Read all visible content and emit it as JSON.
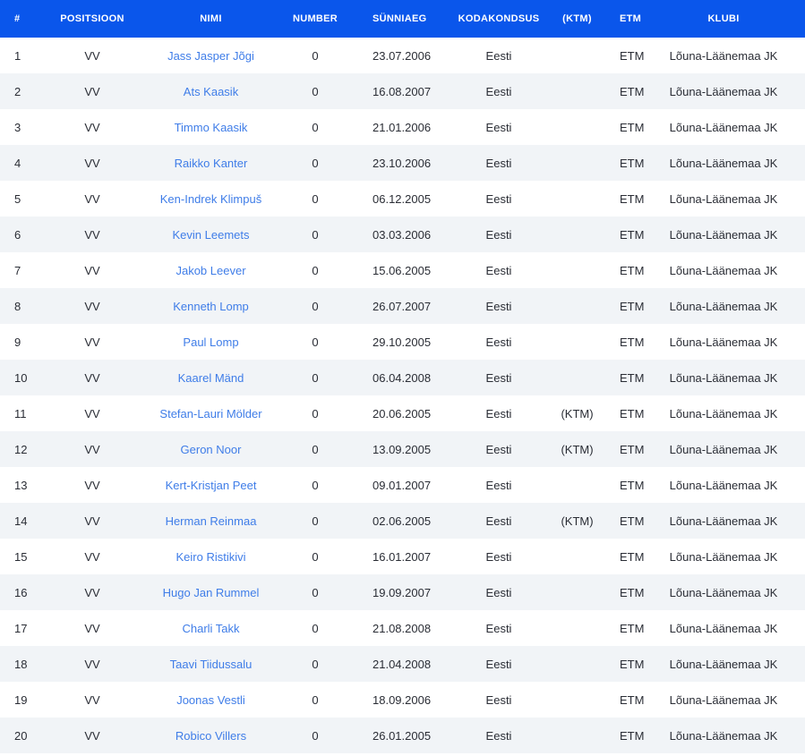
{
  "colors": {
    "header_bg": "#0a56eb",
    "header_text": "#ffffff",
    "row_alt_bg": "#f1f4f7",
    "link": "#3f7de8",
    "text": "#2a2d35"
  },
  "table": {
    "columns": [
      {
        "key": "num",
        "label": "#"
      },
      {
        "key": "positsioon",
        "label": "POSITSIOON"
      },
      {
        "key": "nimi",
        "label": "NIMI"
      },
      {
        "key": "number",
        "label": "NUMBER"
      },
      {
        "key": "sunniaeg",
        "label": "SÜNNIAEG"
      },
      {
        "key": "kodakondsus",
        "label": "KODAKONDSUS"
      },
      {
        "key": "ktm",
        "label": "(KTM)"
      },
      {
        "key": "etm",
        "label": "ETM"
      },
      {
        "key": "klubi",
        "label": "KLUBI"
      }
    ],
    "rows": [
      {
        "num": "1",
        "positsioon": "VV",
        "nimi": "Jass Jasper Jõgi",
        "number": "0",
        "sunniaeg": "23.07.2006",
        "kodakondsus": "Eesti",
        "ktm": "",
        "etm": "ETM",
        "klubi": "Lõuna-Läänemaa JK"
      },
      {
        "num": "2",
        "positsioon": "VV",
        "nimi": "Ats Kaasik",
        "number": "0",
        "sunniaeg": "16.08.2007",
        "kodakondsus": "Eesti",
        "ktm": "",
        "etm": "ETM",
        "klubi": "Lõuna-Läänemaa JK"
      },
      {
        "num": "3",
        "positsioon": "VV",
        "nimi": "Timmo Kaasik",
        "number": "0",
        "sunniaeg": "21.01.2006",
        "kodakondsus": "Eesti",
        "ktm": "",
        "etm": "ETM",
        "klubi": "Lõuna-Läänemaa JK"
      },
      {
        "num": "4",
        "positsioon": "VV",
        "nimi": "Raikko Kanter",
        "number": "0",
        "sunniaeg": "23.10.2006",
        "kodakondsus": "Eesti",
        "ktm": "",
        "etm": "ETM",
        "klubi": "Lõuna-Läänemaa JK"
      },
      {
        "num": "5",
        "positsioon": "VV",
        "nimi": "Ken-Indrek Klimpuš",
        "number": "0",
        "sunniaeg": "06.12.2005",
        "kodakondsus": "Eesti",
        "ktm": "",
        "etm": "ETM",
        "klubi": "Lõuna-Läänemaa JK"
      },
      {
        "num": "6",
        "positsioon": "VV",
        "nimi": "Kevin Leemets",
        "number": "0",
        "sunniaeg": "03.03.2006",
        "kodakondsus": "Eesti",
        "ktm": "",
        "etm": "ETM",
        "klubi": "Lõuna-Läänemaa JK"
      },
      {
        "num": "7",
        "positsioon": "VV",
        "nimi": "Jakob Leever",
        "number": "0",
        "sunniaeg": "15.06.2005",
        "kodakondsus": "Eesti",
        "ktm": "",
        "etm": "ETM",
        "klubi": "Lõuna-Läänemaa JK"
      },
      {
        "num": "8",
        "positsioon": "VV",
        "nimi": "Kenneth Lomp",
        "number": "0",
        "sunniaeg": "26.07.2007",
        "kodakondsus": "Eesti",
        "ktm": "",
        "etm": "ETM",
        "klubi": "Lõuna-Läänemaa JK"
      },
      {
        "num": "9",
        "positsioon": "VV",
        "nimi": "Paul Lomp",
        "number": "0",
        "sunniaeg": "29.10.2005",
        "kodakondsus": "Eesti",
        "ktm": "",
        "etm": "ETM",
        "klubi": "Lõuna-Läänemaa JK"
      },
      {
        "num": "10",
        "positsioon": "VV",
        "nimi": "Kaarel Mänd",
        "number": "0",
        "sunniaeg": "06.04.2008",
        "kodakondsus": "Eesti",
        "ktm": "",
        "etm": "ETM",
        "klubi": "Lõuna-Läänemaa JK"
      },
      {
        "num": "11",
        "positsioon": "VV",
        "nimi": "Stefan-Lauri Mölder",
        "number": "0",
        "sunniaeg": "20.06.2005",
        "kodakondsus": "Eesti",
        "ktm": "(KTM)",
        "etm": "ETM",
        "klubi": "Lõuna-Läänemaa JK"
      },
      {
        "num": "12",
        "positsioon": "VV",
        "nimi": "Geron Noor",
        "number": "0",
        "sunniaeg": "13.09.2005",
        "kodakondsus": "Eesti",
        "ktm": "(KTM)",
        "etm": "ETM",
        "klubi": "Lõuna-Läänemaa JK"
      },
      {
        "num": "13",
        "positsioon": "VV",
        "nimi": "Kert-Kristjan Peet",
        "number": "0",
        "sunniaeg": "09.01.2007",
        "kodakondsus": "Eesti",
        "ktm": "",
        "etm": "ETM",
        "klubi": "Lõuna-Läänemaa JK"
      },
      {
        "num": "14",
        "positsioon": "VV",
        "nimi": "Herman Reinmaa",
        "number": "0",
        "sunniaeg": "02.06.2005",
        "kodakondsus": "Eesti",
        "ktm": "(KTM)",
        "etm": "ETM",
        "klubi": "Lõuna-Läänemaa JK"
      },
      {
        "num": "15",
        "positsioon": "VV",
        "nimi": "Keiro Ristikivi",
        "number": "0",
        "sunniaeg": "16.01.2007",
        "kodakondsus": "Eesti",
        "ktm": "",
        "etm": "ETM",
        "klubi": "Lõuna-Läänemaa JK"
      },
      {
        "num": "16",
        "positsioon": "VV",
        "nimi": "Hugo Jan Rummel",
        "number": "0",
        "sunniaeg": "19.09.2007",
        "kodakondsus": "Eesti",
        "ktm": "",
        "etm": "ETM",
        "klubi": "Lõuna-Läänemaa JK"
      },
      {
        "num": "17",
        "positsioon": "VV",
        "nimi": "Charli Takk",
        "number": "0",
        "sunniaeg": "21.08.2008",
        "kodakondsus": "Eesti",
        "ktm": "",
        "etm": "ETM",
        "klubi": "Lõuna-Läänemaa JK"
      },
      {
        "num": "18",
        "positsioon": "VV",
        "nimi": "Taavi Tiidussalu",
        "number": "0",
        "sunniaeg": "21.04.2008",
        "kodakondsus": "Eesti",
        "ktm": "",
        "etm": "ETM",
        "klubi": "Lõuna-Läänemaa JK"
      },
      {
        "num": "19",
        "positsioon": "VV",
        "nimi": "Joonas Vestli",
        "number": "0",
        "sunniaeg": "18.09.2006",
        "kodakondsus": "Eesti",
        "ktm": "",
        "etm": "ETM",
        "klubi": "Lõuna-Läänemaa JK"
      },
      {
        "num": "20",
        "positsioon": "VV",
        "nimi": "Robico Villers",
        "number": "0",
        "sunniaeg": "26.01.2005",
        "kodakondsus": "Eesti",
        "ktm": "",
        "etm": "ETM",
        "klubi": "Lõuna-Läänemaa JK"
      }
    ]
  }
}
